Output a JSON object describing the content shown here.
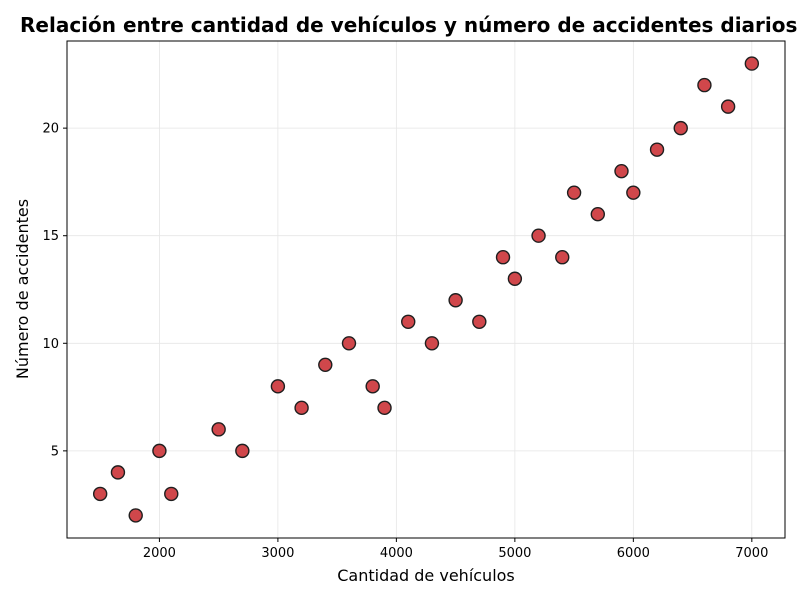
{
  "chart_data": {
    "type": "scatter",
    "title": "Relación entre cantidad de vehículos y número de accidentes diarios",
    "xlabel": "Cantidad de vehículos",
    "ylabel": "Número de accidentes",
    "xlim": [
      1220,
      7280
    ],
    "ylim": [
      0.95,
      24.05
    ],
    "xticks": [
      2000,
      3000,
      4000,
      5000,
      6000,
      7000
    ],
    "yticks": [
      5,
      10,
      15,
      20
    ],
    "grid": true,
    "point_color": "#d0474b",
    "edge_color": "#1f1f1f",
    "points": [
      {
        "x": 1500,
        "y": 3
      },
      {
        "x": 1650,
        "y": 4
      },
      {
        "x": 1800,
        "y": 2
      },
      {
        "x": 2000,
        "y": 5
      },
      {
        "x": 2100,
        "y": 3
      },
      {
        "x": 2500,
        "y": 6
      },
      {
        "x": 2700,
        "y": 5
      },
      {
        "x": 3000,
        "y": 8
      },
      {
        "x": 3200,
        "y": 7
      },
      {
        "x": 3400,
        "y": 9
      },
      {
        "x": 3600,
        "y": 10
      },
      {
        "x": 3800,
        "y": 8
      },
      {
        "x": 3900,
        "y": 7
      },
      {
        "x": 4100,
        "y": 11
      },
      {
        "x": 4300,
        "y": 10
      },
      {
        "x": 4500,
        "y": 12
      },
      {
        "x": 4700,
        "y": 11
      },
      {
        "x": 4900,
        "y": 14
      },
      {
        "x": 5000,
        "y": 13
      },
      {
        "x": 5200,
        "y": 15
      },
      {
        "x": 5400,
        "y": 14
      },
      {
        "x": 5500,
        "y": 17
      },
      {
        "x": 5700,
        "y": 16
      },
      {
        "x": 5900,
        "y": 18
      },
      {
        "x": 6000,
        "y": 17
      },
      {
        "x": 6200,
        "y": 19
      },
      {
        "x": 6400,
        "y": 20
      },
      {
        "x": 6600,
        "y": 22
      },
      {
        "x": 6800,
        "y": 21
      },
      {
        "x": 7000,
        "y": 23
      }
    ]
  }
}
